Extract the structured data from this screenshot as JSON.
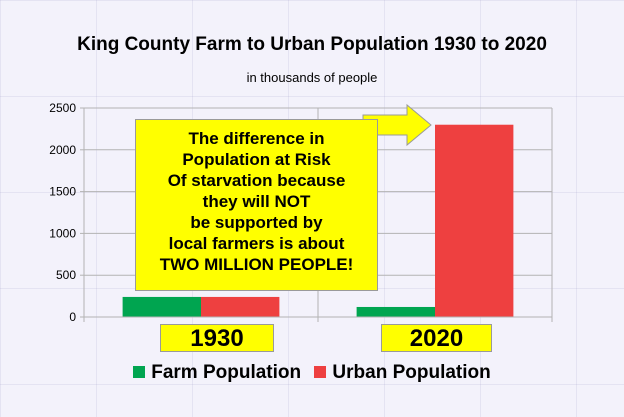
{
  "chart_data": {
    "type": "bar",
    "title": "King County Farm to Urban Population 1930 to 2020",
    "subtitle": "in thousands of people",
    "categories": [
      "1930",
      "2020"
    ],
    "series": [
      {
        "name": "Farm Population",
        "color": "#00a550",
        "values": [
          240,
          120
        ]
      },
      {
        "name": "Urban Population",
        "color": "#ee4040",
        "values": [
          240,
          2300
        ]
      }
    ],
    "yticks": [
      "0",
      "500",
      "1000",
      "1500",
      "2000",
      "2500"
    ],
    "ylim": [
      0,
      2500
    ],
    "grid": true,
    "legend": "bottom",
    "annotation": {
      "lines": [
        "The difference in",
        "Population at Risk",
        "Of starvation because",
        "they will NOT",
        "be supported by",
        "local farmers is about",
        "TWO MILLION PEOPLE!"
      ],
      "background": "#ffff00"
    }
  }
}
